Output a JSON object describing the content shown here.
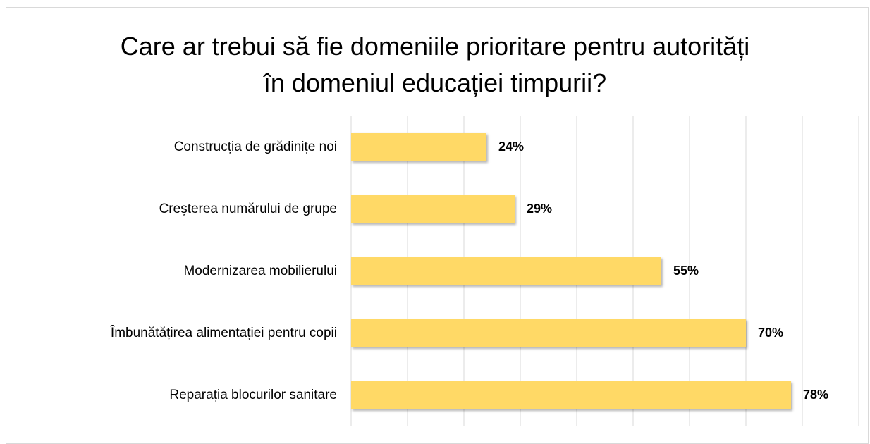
{
  "chart_data": {
    "type": "bar",
    "orientation": "horizontal",
    "title": "Care ar trebui să fie domeniile prioritare pentru autorități în domeniul educației timpurii?",
    "categories": [
      "Construcția de grădinițe noi",
      "Creșterea numărului de grupe",
      "Modernizarea mobilierului",
      "Îmbunătățirea alimentației pentru copii",
      "Reparația blocurilor sanitare"
    ],
    "values": [
      24,
      29,
      55,
      70,
      78
    ],
    "value_labels": [
      "24%",
      "29%",
      "55%",
      "70%",
      "78%"
    ],
    "color": "#ffd966",
    "xlim": [
      0,
      90
    ],
    "xticks": [
      0,
      10,
      20,
      30,
      40,
      50,
      60,
      70,
      80,
      90
    ],
    "grid": true
  }
}
